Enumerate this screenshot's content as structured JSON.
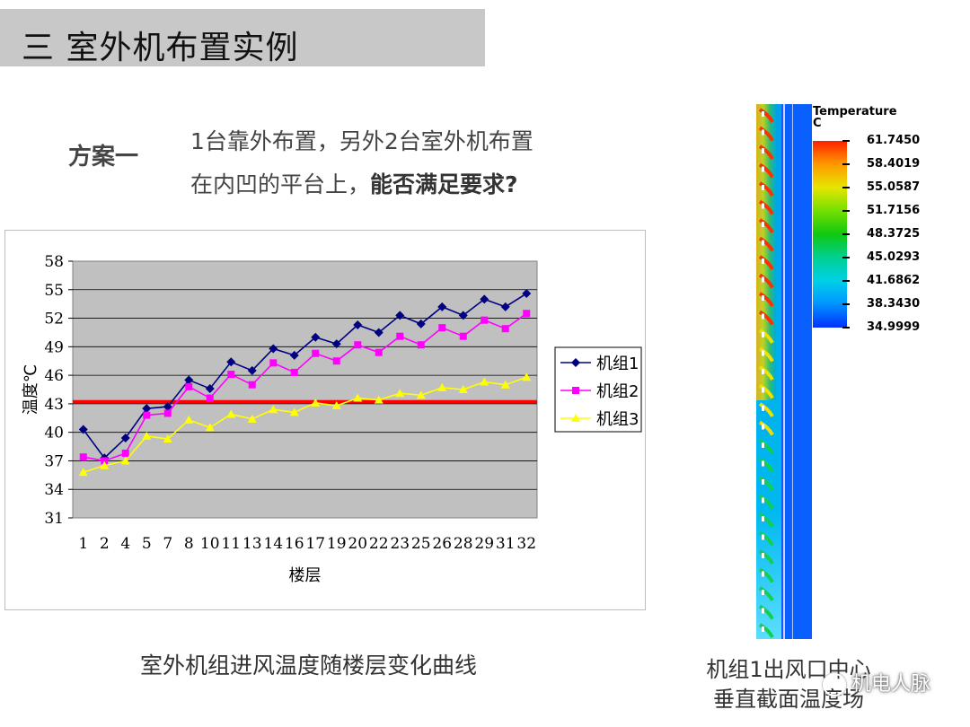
{
  "slide": {
    "title": "三  室外机布置实例",
    "scheme_label": "方案一",
    "desc_line1": "1台靠外布置，另外2台室外机布置",
    "desc_line2_normal": "在内凹的平台上，",
    "desc_line2_bold": "能否满足要求?",
    "chart_caption": "室外机组进风温度随楼层变化曲线",
    "sim_caption_line1": "机组1出风口中心",
    "sim_caption_line2": "垂直截面温度场",
    "watermark": "机电人脉"
  },
  "chart_data": {
    "type": "line",
    "title": "",
    "xlabel": "楼层",
    "ylabel": "温度℃",
    "ylim": [
      31,
      58
    ],
    "yticks": [
      31,
      34,
      37,
      40,
      43,
      46,
      49,
      52,
      55,
      58
    ],
    "categories": [
      "1",
      "2",
      "4",
      "5",
      "7",
      "8",
      "10",
      "11",
      "13",
      "14",
      "16",
      "17",
      "19",
      "20",
      "22",
      "23",
      "25",
      "26",
      "28",
      "29",
      "31",
      "32"
    ],
    "series": [
      {
        "name": "机组1",
        "color": "#000080",
        "marker": "diamond",
        "values": [
          40.3,
          37.3,
          39.4,
          42.5,
          42.7,
          45.5,
          44.6,
          47.4,
          46.5,
          48.8,
          48.1,
          50.0,
          49.3,
          51.3,
          50.5,
          52.3,
          51.4,
          53.2,
          52.3,
          54.0,
          53.2,
          54.6
        ]
      },
      {
        "name": "机组2",
        "color": "#ff00ff",
        "marker": "square",
        "values": [
          37.4,
          37.0,
          37.8,
          41.8,
          42.0,
          44.8,
          43.6,
          46.1,
          45.0,
          47.3,
          46.3,
          48.3,
          47.5,
          49.2,
          48.4,
          50.1,
          49.2,
          51.0,
          50.1,
          51.8,
          50.9,
          52.5
        ]
      },
      {
        "name": "机组3",
        "color": "#ffff00",
        "marker": "triangle",
        "values": [
          35.8,
          36.5,
          37.0,
          39.6,
          39.3,
          41.3,
          40.5,
          41.9,
          41.4,
          42.4,
          42.1,
          43.1,
          42.8,
          43.6,
          43.4,
          44.1,
          43.9,
          44.7,
          44.5,
          45.3,
          45.0,
          45.8
        ]
      }
    ],
    "reference_line": {
      "value": 43.2,
      "color": "#ff0000"
    },
    "grid": true,
    "legend": "right"
  },
  "colorbar": {
    "title": "Temperature",
    "unit": "C",
    "ticks": [
      "61.7450",
      "58.4019",
      "55.0587",
      "51.7156",
      "48.3725",
      "45.0293",
      "41.6862",
      "38.3430",
      "34.9999"
    ]
  }
}
